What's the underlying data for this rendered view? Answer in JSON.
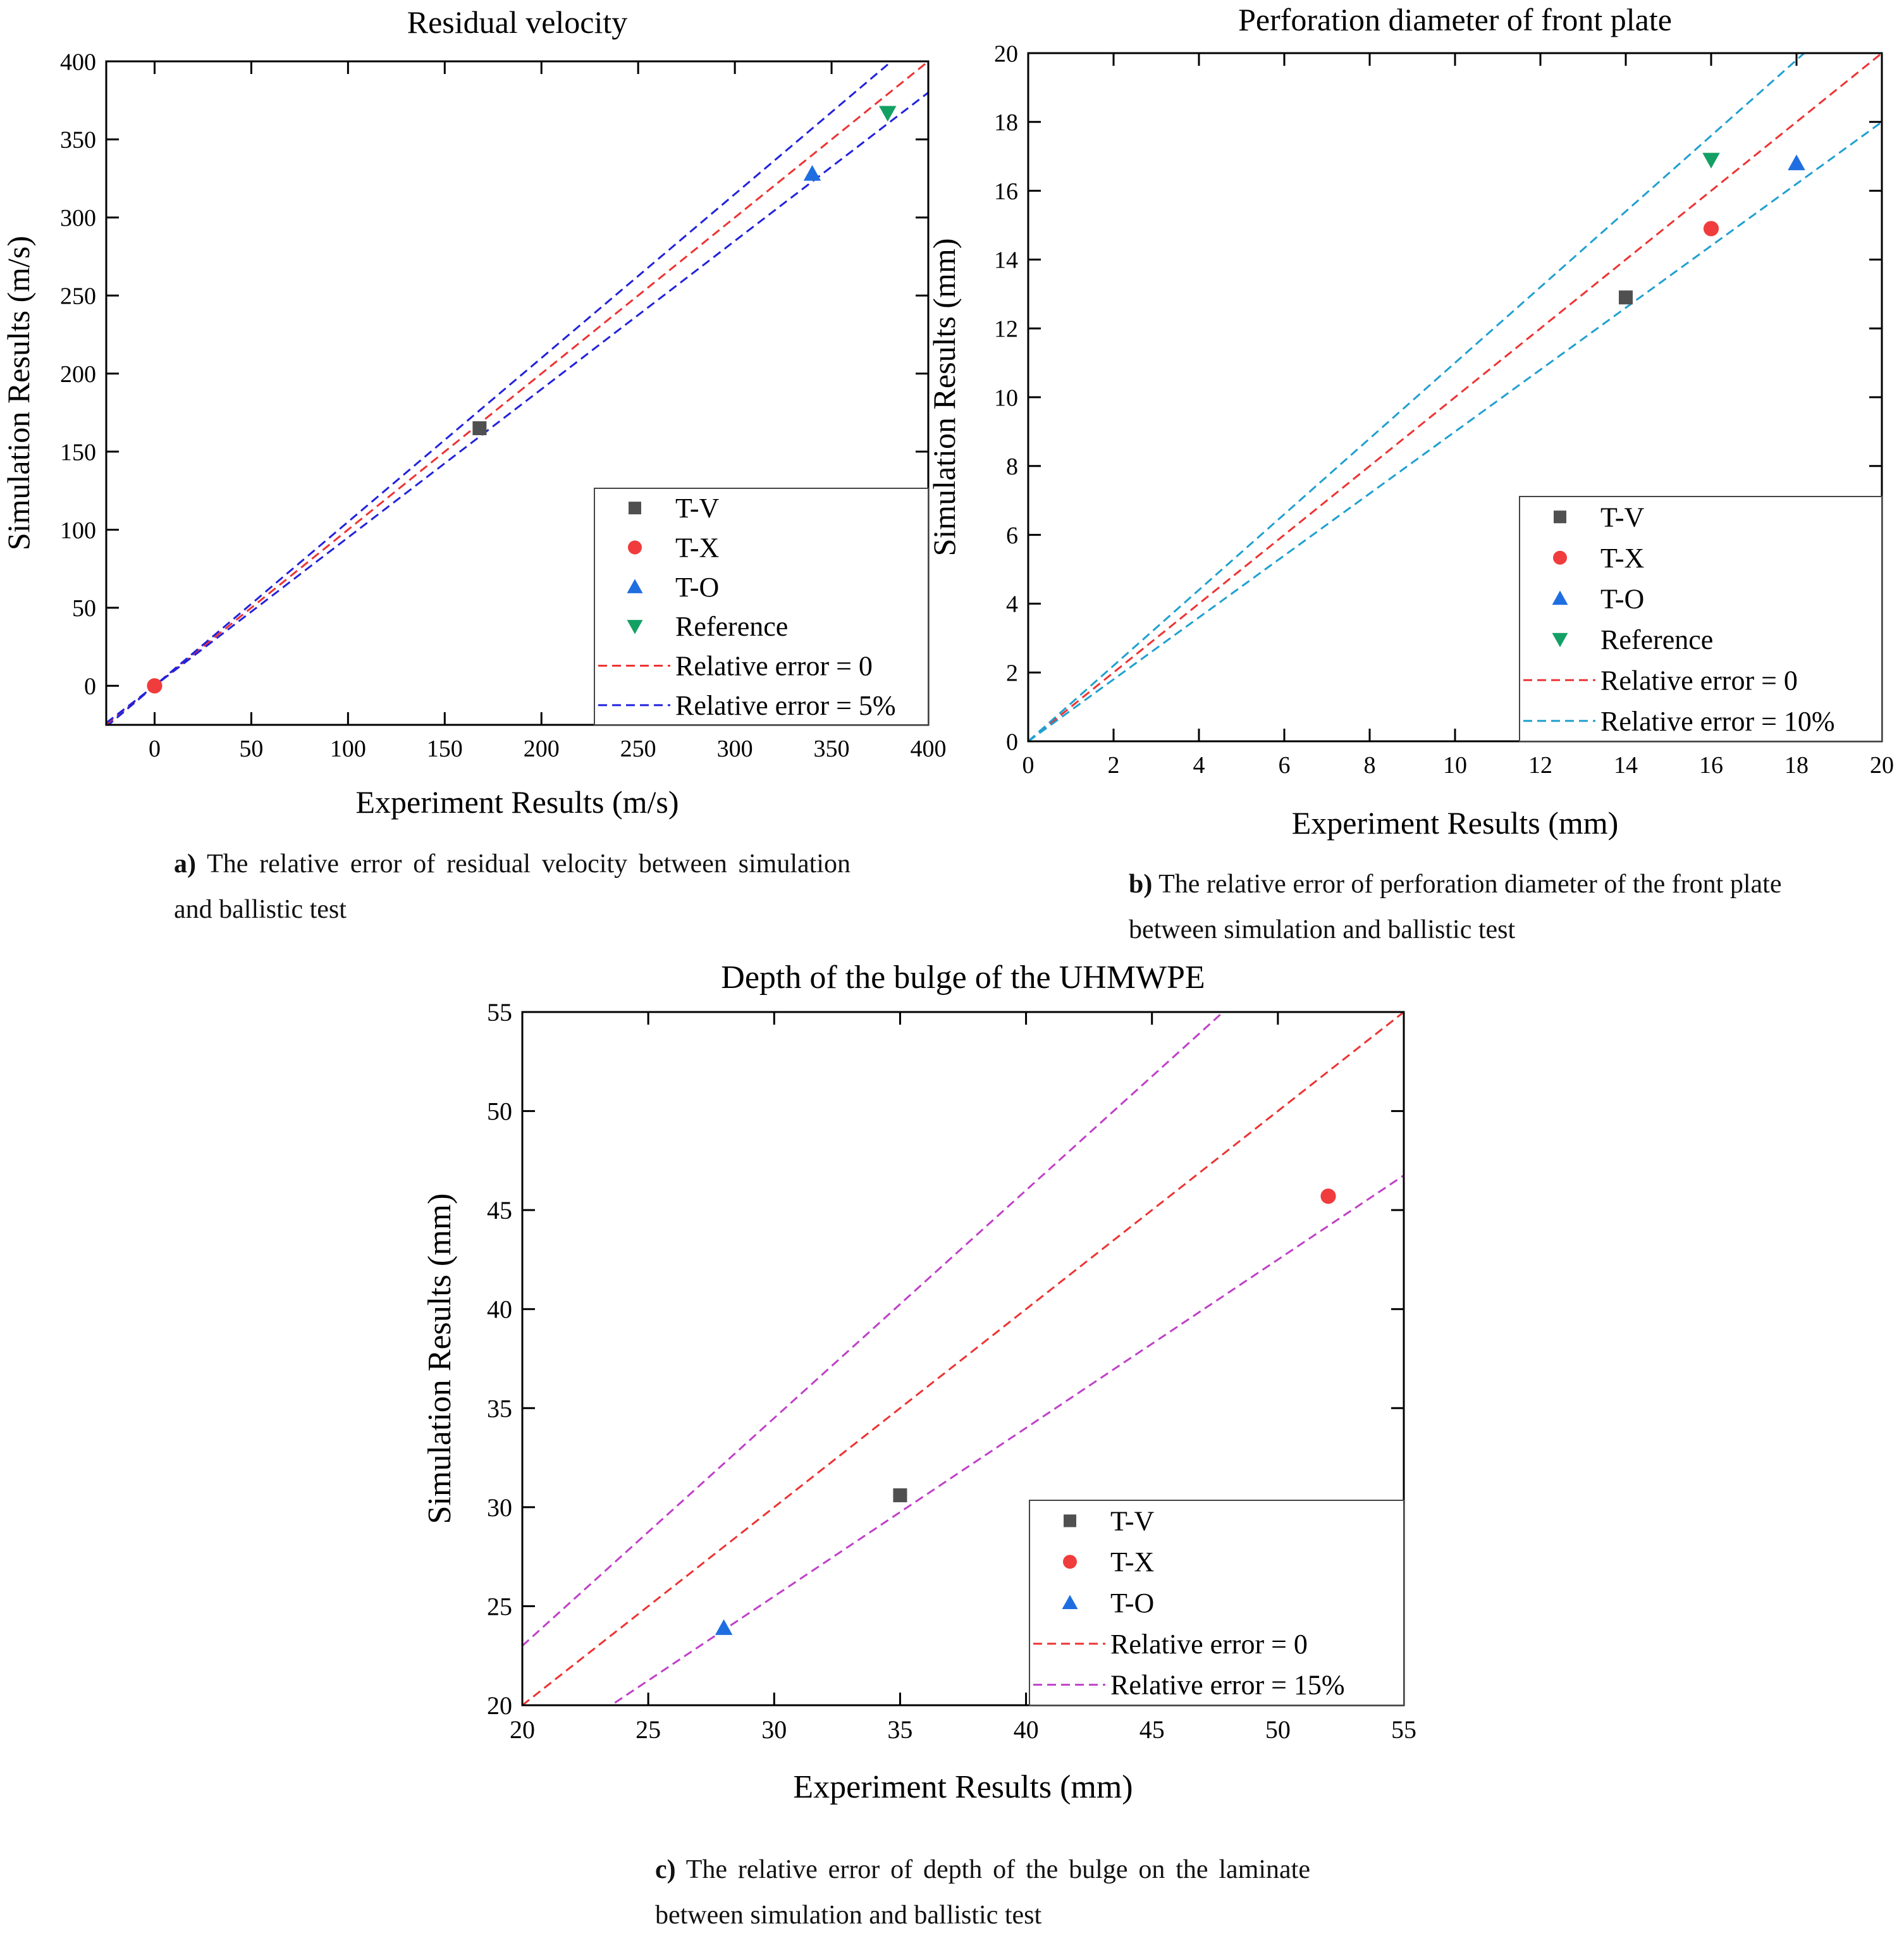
{
  "figure": {
    "captions": [
      {
        "letter": "a)",
        "text": "The relative error of residual velocity between simulation and ballistic test"
      },
      {
        "letter": "b)",
        "text": "The relative error of perforation diameter of the front plate between simulation and ballistic test"
      },
      {
        "letter": "c)",
        "text": "The relative error of depth of the bulge on the laminate between simulation and ballistic test"
      }
    ]
  },
  "colors": {
    "t_v": "#505050",
    "t_x": "#f03c3c",
    "t_o": "#1e6ee1",
    "reference": "#14a064",
    "zero_line": "#ee3333",
    "band_a": "#2222dd",
    "band_b": "#20a0d0",
    "band_c": "#c040c8"
  },
  "chart_data": [
    {
      "type": "scatter",
      "title": "Residual velocity",
      "xlabel": "Experiment Results (m/s)",
      "ylabel": "Simulation Results (m/s)",
      "xlim": [
        -25,
        400
      ],
      "ylim": [
        -25,
        400
      ],
      "xticks": [
        0,
        50,
        100,
        150,
        200,
        250,
        300,
        350,
        400
      ],
      "yticks": [
        0,
        50,
        100,
        150,
        200,
        250,
        300,
        350,
        400
      ],
      "legend_position": "bottom-right",
      "series": [
        {
          "name": "T-V",
          "marker": "square",
          "color": "#505050",
          "x": [
            168
          ],
          "y": [
            165
          ]
        },
        {
          "name": "T-X",
          "marker": "circle",
          "color": "#f03c3c",
          "x": [
            0
          ],
          "y": [
            0
          ]
        },
        {
          "name": "T-O",
          "marker": "triangle-up",
          "color": "#1e6ee1",
          "x": [
            340
          ],
          "y": [
            328
          ]
        },
        {
          "name": "Reference",
          "marker": "triangle-down",
          "color": "#14a064",
          "x": [
            379
          ],
          "y": [
            367
          ]
        }
      ],
      "lines": [
        {
          "name": "Relative error = 0",
          "color": "#ee3333",
          "slopes": [
            1
          ]
        },
        {
          "name": "Relative error = 5%",
          "color": "#2222dd",
          "slopes": [
            1.05,
            0.95
          ]
        }
      ]
    },
    {
      "type": "scatter",
      "title": "Perforation diameter of front plate",
      "xlabel": "Experiment Results (mm)",
      "ylabel": "Simulation Results (mm)",
      "xlim": [
        0,
        20
      ],
      "ylim": [
        0,
        20
      ],
      "xticks": [
        0,
        2,
        4,
        6,
        8,
        10,
        12,
        14,
        16,
        18,
        20
      ],
      "yticks": [
        0,
        2,
        4,
        6,
        8,
        10,
        12,
        14,
        16,
        18,
        20
      ],
      "legend_position": "bottom-right",
      "series": [
        {
          "name": "T-V",
          "marker": "square",
          "color": "#505050",
          "x": [
            14
          ],
          "y": [
            12.9
          ]
        },
        {
          "name": "T-X",
          "marker": "circle",
          "color": "#f03c3c",
          "x": [
            16
          ],
          "y": [
            14.9
          ]
        },
        {
          "name": "T-O",
          "marker": "triangle-up",
          "color": "#1e6ee1",
          "x": [
            18
          ],
          "y": [
            16.8
          ]
        },
        {
          "name": "Reference",
          "marker": "triangle-down",
          "color": "#14a064",
          "x": [
            16
          ],
          "y": [
            16.9
          ]
        }
      ],
      "lines": [
        {
          "name": "Relative error = 0",
          "color": "#ee3333",
          "slopes": [
            1
          ]
        },
        {
          "name": "Relative error = 10%",
          "color": "#20a0d0",
          "slopes": [
            1.1,
            0.9
          ]
        }
      ]
    },
    {
      "type": "scatter",
      "title": "Depth of the bulge of the UHMWPE",
      "xlabel": "Experiment Results (mm)",
      "ylabel": "Simulation Results (mm)",
      "xlim": [
        20,
        55
      ],
      "ylim": [
        20,
        55
      ],
      "xticks": [
        20,
        25,
        30,
        35,
        40,
        45,
        50,
        55
      ],
      "yticks": [
        20,
        25,
        30,
        35,
        40,
        45,
        50,
        55
      ],
      "legend_position": "bottom-right",
      "series": [
        {
          "name": "T-V",
          "marker": "square",
          "color": "#505050",
          "x": [
            35
          ],
          "y": [
            30.6
          ]
        },
        {
          "name": "T-X",
          "marker": "circle",
          "color": "#f03c3c",
          "x": [
            52
          ],
          "y": [
            45.7
          ]
        },
        {
          "name": "T-O",
          "marker": "triangle-up",
          "color": "#1e6ee1",
          "x": [
            28
          ],
          "y": [
            23.9
          ]
        }
      ],
      "lines": [
        {
          "name": "Relative error = 0",
          "color": "#ee3333",
          "slopes": [
            1
          ]
        },
        {
          "name": "Relative error = 15%",
          "color": "#c040c8",
          "slopes": [
            1.15,
            0.85
          ]
        }
      ]
    }
  ]
}
